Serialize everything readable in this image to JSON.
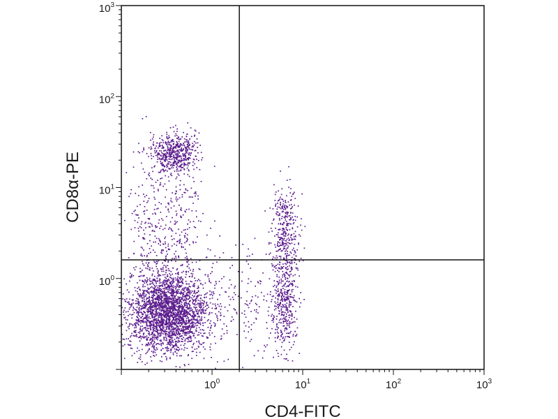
{
  "chart_data": {
    "type": "scatter",
    "title": "",
    "xlabel": "CD4-FITC",
    "ylabel": "CD8α-PE",
    "xscale": "log",
    "yscale": "log",
    "xlim": [
      0.1,
      1000
    ],
    "ylim": [
      0.1,
      1000
    ],
    "grid": false,
    "x_ticks": [
      {
        "base": "10",
        "exp": "0",
        "value": 1
      },
      {
        "base": "10",
        "exp": "1",
        "value": 10
      },
      {
        "base": "10",
        "exp": "2",
        "value": 100
      },
      {
        "base": "10",
        "exp": "3",
        "value": 1000
      }
    ],
    "y_ticks": [
      {
        "base": "10",
        "exp": "0",
        "value": 1
      },
      {
        "base": "10",
        "exp": "1",
        "value": 10
      },
      {
        "base": "10",
        "exp": "2",
        "value": 100
      },
      {
        "base": "10",
        "exp": "3",
        "value": 1000
      }
    ],
    "quadrant_gates": {
      "x": 2.0,
      "y": 1.6
    },
    "point_color": "#5a1a8c",
    "populations": [
      {
        "n": 2600,
        "x_center": 0.33,
        "y_center": 0.42,
        "x_spread_log": 0.22,
        "y_spread_log": 0.22
      },
      {
        "n": 520,
        "x_center": 0.38,
        "y_center": 24,
        "x_spread_log": 0.12,
        "y_spread_log": 0.11
      },
      {
        "n": 320,
        "x_center": 0.38,
        "y_center": 4.0,
        "x_spread_log": 0.17,
        "y_spread_log": 0.4
      },
      {
        "n": 140,
        "x_center": 0.18,
        "y_center": 3.0,
        "x_spread_log": 0.08,
        "y_spread_log": 0.5
      },
      {
        "n": 340,
        "x_center": 6.5,
        "y_center": 3.5,
        "x_spread_log": 0.08,
        "y_spread_log": 0.23
      },
      {
        "n": 420,
        "x_center": 6.3,
        "y_center": 0.55,
        "x_spread_log": 0.07,
        "y_spread_log": 0.27
      },
      {
        "n": 180,
        "x_center": 1.2,
        "y_center": 0.6,
        "x_spread_log": 0.35,
        "y_spread_log": 0.35
      },
      {
        "n": 60,
        "x_center": 3.0,
        "y_center": 0.6,
        "x_spread_log": 0.12,
        "y_spread_log": 0.35
      }
    ]
  }
}
